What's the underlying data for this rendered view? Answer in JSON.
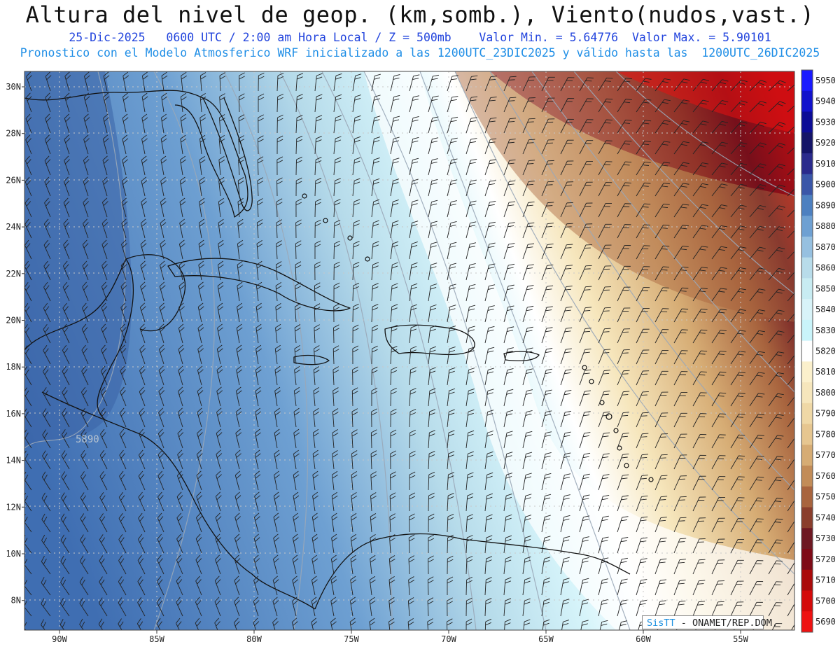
{
  "header": {
    "title": "Altura del nivel de geop. (km,somb.), Viento(nudos,vast.)",
    "subtitle_line1": "25-Dic-2025   0600 UTC / 2:00 am Hora Local / Z = 500mb    Valor Min. = 5.64776  Valor Max. = 5.90101",
    "subtitle_line2": "Pronostico con el Modelo Atmosferico WRF inicializado a las 1200UTC_23DIC2025 y válido hasta las  1200UTC_26DIC2025"
  },
  "map": {
    "lat_labels": [
      "30N",
      "28N",
      "26N",
      "24N",
      "22N",
      "20N",
      "18N",
      "16N",
      "14N",
      "12N",
      "10N",
      "8N"
    ],
    "lat_values": [
      30,
      28,
      26,
      24,
      22,
      20,
      18,
      16,
      14,
      12,
      10,
      8
    ],
    "lon_labels": [
      "90W",
      "85W",
      "80W",
      "75W",
      "70W",
      "65W",
      "60W",
      "55W"
    ],
    "lon_values": [
      -90,
      -85,
      -80,
      -75,
      -70,
      -65,
      -60,
      -55
    ],
    "contour_label": "5890",
    "region": "Caribbean / Gulf of Mexico"
  },
  "colorbar": {
    "levels": [
      "5950",
      "5940",
      "5930",
      "5920",
      "5910",
      "5900",
      "5890",
      "5880",
      "5870",
      "5860",
      "5850",
      "5840",
      "5830",
      "5820",
      "5810",
      "5800",
      "5790",
      "5780",
      "5770",
      "5760",
      "5750",
      "5740",
      "5730",
      "5720",
      "5710",
      "5700",
      "5690"
    ],
    "colors": [
      "#1a1aff",
      "#1212cc",
      "#0c0c96",
      "#141468",
      "#2a2a8c",
      "#3a56a8",
      "#4d80c0",
      "#6ea0d2",
      "#96c0e0",
      "#b8dcea",
      "#c8ecf2",
      "#d8f3f8",
      "#c9f4fa",
      "#ffffff",
      "#fbf0cc",
      "#f6e6bc",
      "#efd8a6",
      "#e6c690",
      "#d6ac74",
      "#c28c58",
      "#a8643e",
      "#8a3e2c",
      "#6e1822",
      "#7e0a16",
      "#aa0a0a",
      "#d40a0a",
      "#ee1212"
    ]
  },
  "credit": {
    "brand": "SisTT",
    "org": "- ONAMET/REP.DOM."
  }
}
